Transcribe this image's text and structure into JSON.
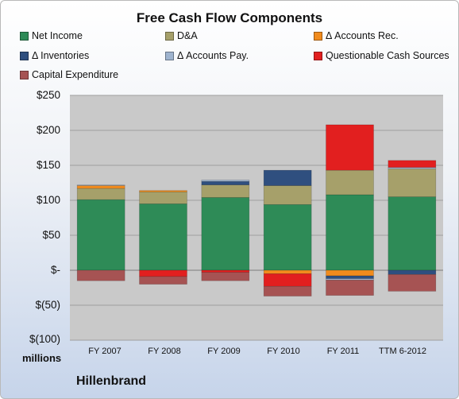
{
  "chart_data": {
    "type": "bar",
    "stacked": true,
    "title": "Free Cash Flow Components",
    "categories": [
      "FY 2007",
      "FY 2008",
      "FY 2009",
      "FY 2010",
      "FY 2011",
      "TTM 6-2012"
    ],
    "ylim": [
      -100,
      250
    ],
    "yticks": [
      250,
      200,
      150,
      100,
      50,
      0,
      -50,
      -100
    ],
    "ytick_labels": [
      "$250",
      "$200",
      "$150",
      "$100",
      "$50",
      "$-",
      "$(50)",
      "$(100)"
    ],
    "y_unit_label": "millions",
    "legend_position": "top",
    "grid": true,
    "series": [
      {
        "name": "Net Income",
        "color": "#2e8b57",
        "values": [
          101,
          95,
          104,
          94,
          108,
          105
        ]
      },
      {
        "name": "D&A",
        "color": "#a6a06a",
        "values": [
          16,
          17,
          18,
          27,
          35,
          40
        ]
      },
      {
        "name": "Δ Accounts Rec.",
        "color": "#f18b1d",
        "values": [
          4,
          2,
          0,
          -5,
          -8,
          0
        ]
      },
      {
        "name": "Δ Inventories",
        "color": "#2f4f7f",
        "values": [
          0,
          0,
          5,
          22,
          -4,
          -6
        ]
      },
      {
        "name": "Δ Accounts Pay.",
        "color": "#9fb4cf",
        "values": [
          1,
          0,
          2,
          0,
          -2,
          2
        ]
      },
      {
        "name": "Questionable Cash Sources",
        "color": "#e21f1f",
        "values": [
          0,
          -9,
          -3,
          -18,
          65,
          10
        ]
      },
      {
        "name": "Capital Expenditure",
        "color": "#a65353",
        "values": [
          -15,
          -11,
          -12,
          -14,
          -22,
          -24
        ]
      }
    ]
  },
  "footer": {
    "units": "millions",
    "company": "Hillenbrand"
  }
}
